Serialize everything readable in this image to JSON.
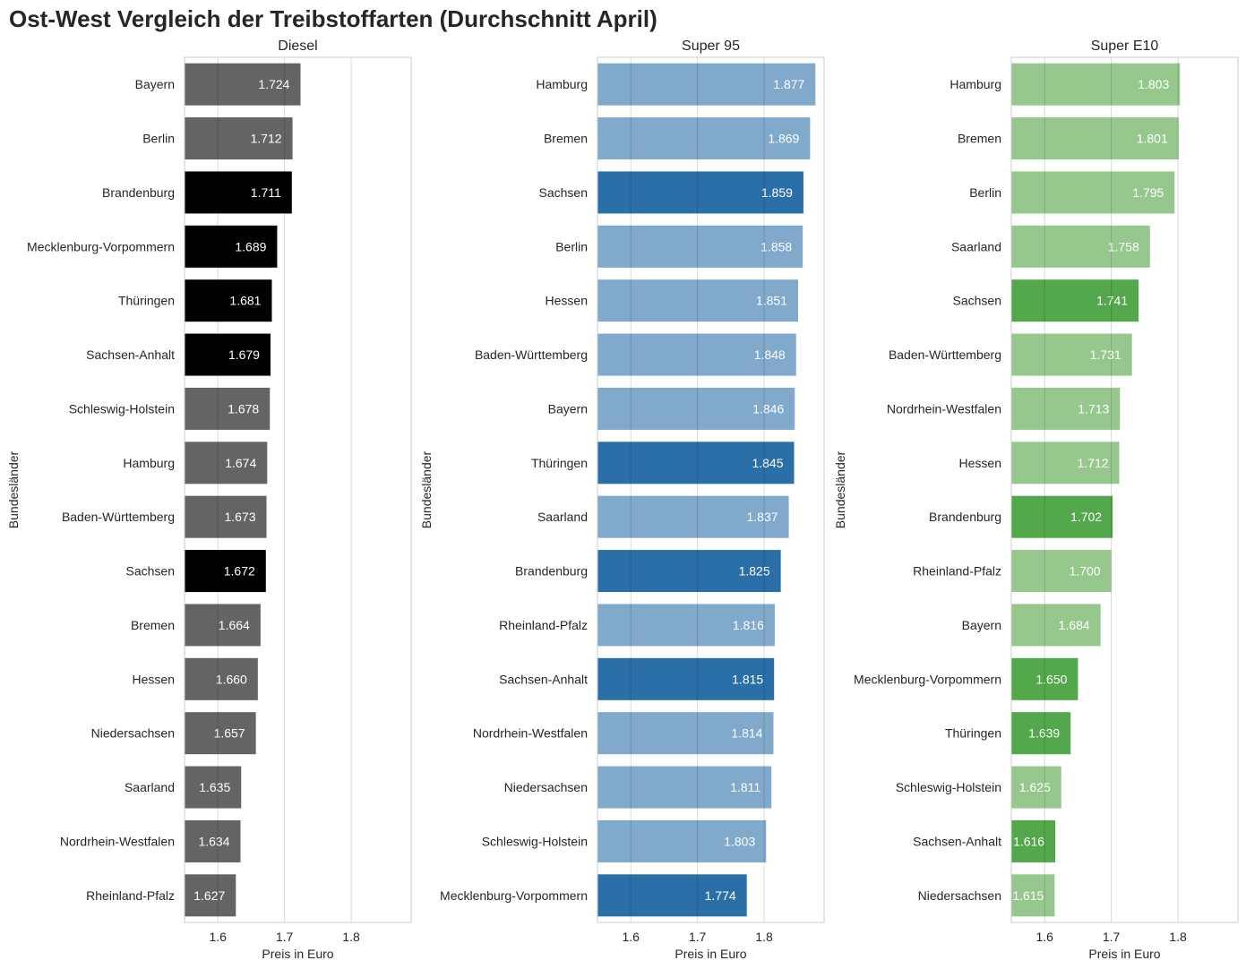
{
  "title": "Ost-West Vergleich der Treibstoffarten (Durchschnitt April)",
  "colors": {
    "grid": "#d9d9d9",
    "frame": "#cccccc",
    "text": "#262626",
    "bar_label": "#ffffff"
  },
  "chart_data": [
    {
      "type": "bar",
      "orientation": "horizontal",
      "title": "Diesel",
      "xlabel": "Preis in Euro",
      "ylabel": "Bundesländer",
      "xlim": [
        1.55,
        1.89
      ],
      "xticks": [
        "1.6",
        "1.7",
        "1.8"
      ],
      "grid": true,
      "colors": {
        "east": "#000000",
        "west": "#646464"
      },
      "bars": [
        {
          "label": "Bayern",
          "value": 1.724,
          "value_text": "1.724",
          "group": "west"
        },
        {
          "label": "Berlin",
          "value": 1.712,
          "value_text": "1.712",
          "group": "west"
        },
        {
          "label": "Brandenburg",
          "value": 1.711,
          "value_text": "1.711",
          "group": "east"
        },
        {
          "label": "Mecklenburg-Vorpommern",
          "value": 1.689,
          "value_text": "1.689",
          "group": "east"
        },
        {
          "label": "Thüringen",
          "value": 1.681,
          "value_text": "1.681",
          "group": "east"
        },
        {
          "label": "Sachsen-Anhalt",
          "value": 1.679,
          "value_text": "1.679",
          "group": "east"
        },
        {
          "label": "Schleswig-Holstein",
          "value": 1.678,
          "value_text": "1.678",
          "group": "west"
        },
        {
          "label": "Hamburg",
          "value": 1.674,
          "value_text": "1.674",
          "group": "west"
        },
        {
          "label": "Baden-Württemberg",
          "value": 1.673,
          "value_text": "1.673",
          "group": "west"
        },
        {
          "label": "Sachsen",
          "value": 1.672,
          "value_text": "1.672",
          "group": "east"
        },
        {
          "label": "Bremen",
          "value": 1.664,
          "value_text": "1.664",
          "group": "west"
        },
        {
          "label": "Hessen",
          "value": 1.66,
          "value_text": "1.660",
          "group": "west"
        },
        {
          "label": "Niedersachsen",
          "value": 1.657,
          "value_text": "1.657",
          "group": "west"
        },
        {
          "label": "Saarland",
          "value": 1.635,
          "value_text": "1.635",
          "group": "west"
        },
        {
          "label": "Nordrhein-Westfalen",
          "value": 1.634,
          "value_text": "1.634",
          "group": "west"
        },
        {
          "label": "Rheinland-Pfalz",
          "value": 1.627,
          "value_text": "1.627",
          "group": "west"
        }
      ]
    },
    {
      "type": "bar",
      "orientation": "horizontal",
      "title": "Super 95",
      "xlabel": "Preis in Euro",
      "ylabel": "Bundesländer",
      "xlim": [
        1.55,
        1.89
      ],
      "xticks": [
        "1.6",
        "1.7",
        "1.8"
      ],
      "grid": true,
      "colors": {
        "east": "#2b6fa8",
        "west": "#80a9cc"
      },
      "bars": [
        {
          "label": "Hamburg",
          "value": 1.877,
          "value_text": "1.877",
          "group": "west"
        },
        {
          "label": "Bremen",
          "value": 1.869,
          "value_text": "1.869",
          "group": "west"
        },
        {
          "label": "Sachsen",
          "value": 1.859,
          "value_text": "1.859",
          "group": "east"
        },
        {
          "label": "Berlin",
          "value": 1.858,
          "value_text": "1.858",
          "group": "west"
        },
        {
          "label": "Hessen",
          "value": 1.851,
          "value_text": "1.851",
          "group": "west"
        },
        {
          "label": "Baden-Württemberg",
          "value": 1.848,
          "value_text": "1.848",
          "group": "west"
        },
        {
          "label": "Bayern",
          "value": 1.846,
          "value_text": "1.846",
          "group": "west"
        },
        {
          "label": "Thüringen",
          "value": 1.845,
          "value_text": "1.845",
          "group": "east"
        },
        {
          "label": "Saarland",
          "value": 1.837,
          "value_text": "1.837",
          "group": "west"
        },
        {
          "label": "Brandenburg",
          "value": 1.825,
          "value_text": "1.825",
          "group": "east"
        },
        {
          "label": "Rheinland-Pfalz",
          "value": 1.816,
          "value_text": "1.816",
          "group": "west"
        },
        {
          "label": "Sachsen-Anhalt",
          "value": 1.815,
          "value_text": "1.815",
          "group": "east"
        },
        {
          "label": "Nordrhein-Westfalen",
          "value": 1.814,
          "value_text": "1.814",
          "group": "west"
        },
        {
          "label": "Niedersachsen",
          "value": 1.811,
          "value_text": "1.811",
          "group": "west"
        },
        {
          "label": "Schleswig-Holstein",
          "value": 1.803,
          "value_text": "1.803",
          "group": "west"
        },
        {
          "label": "Mecklenburg-Vorpommern",
          "value": 1.774,
          "value_text": "1.774",
          "group": "east"
        }
      ]
    },
    {
      "type": "bar",
      "orientation": "horizontal",
      "title": "Super E10",
      "xlabel": "Preis in Euro",
      "ylabel": "Bundesländer",
      "xlim": [
        1.55,
        1.89
      ],
      "xticks": [
        "1.6",
        "1.7",
        "1.8"
      ],
      "grid": true,
      "colors": {
        "east": "#52a84a",
        "west": "#96c88e"
      },
      "bars": [
        {
          "label": "Hamburg",
          "value": 1.803,
          "value_text": "1.803",
          "group": "west"
        },
        {
          "label": "Bremen",
          "value": 1.801,
          "value_text": "1.801",
          "group": "west"
        },
        {
          "label": "Berlin",
          "value": 1.795,
          "value_text": "1.795",
          "group": "west"
        },
        {
          "label": "Saarland",
          "value": 1.758,
          "value_text": "1.758",
          "group": "west"
        },
        {
          "label": "Sachsen",
          "value": 1.741,
          "value_text": "1.741",
          "group": "east"
        },
        {
          "label": "Baden-Württemberg",
          "value": 1.731,
          "value_text": "1.731",
          "group": "west"
        },
        {
          "label": "Nordrhein-Westfalen",
          "value": 1.713,
          "value_text": "1.713",
          "group": "west"
        },
        {
          "label": "Hessen",
          "value": 1.712,
          "value_text": "1.712",
          "group": "west"
        },
        {
          "label": "Brandenburg",
          "value": 1.702,
          "value_text": "1.702",
          "group": "east"
        },
        {
          "label": "Rheinland-Pfalz",
          "value": 1.7,
          "value_text": "1.700",
          "group": "west"
        },
        {
          "label": "Bayern",
          "value": 1.684,
          "value_text": "1.684",
          "group": "west"
        },
        {
          "label": "Mecklenburg-Vorpommern",
          "value": 1.65,
          "value_text": "1.650",
          "group": "east"
        },
        {
          "label": "Thüringen",
          "value": 1.639,
          "value_text": "1.639",
          "group": "east"
        },
        {
          "label": "Schleswig-Holstein",
          "value": 1.625,
          "value_text": "1.625",
          "group": "west"
        },
        {
          "label": "Sachsen-Anhalt",
          "value": 1.616,
          "value_text": "1.616",
          "group": "east"
        },
        {
          "label": "Niedersachsen",
          "value": 1.615,
          "value_text": "1.615",
          "group": "west"
        }
      ]
    }
  ]
}
